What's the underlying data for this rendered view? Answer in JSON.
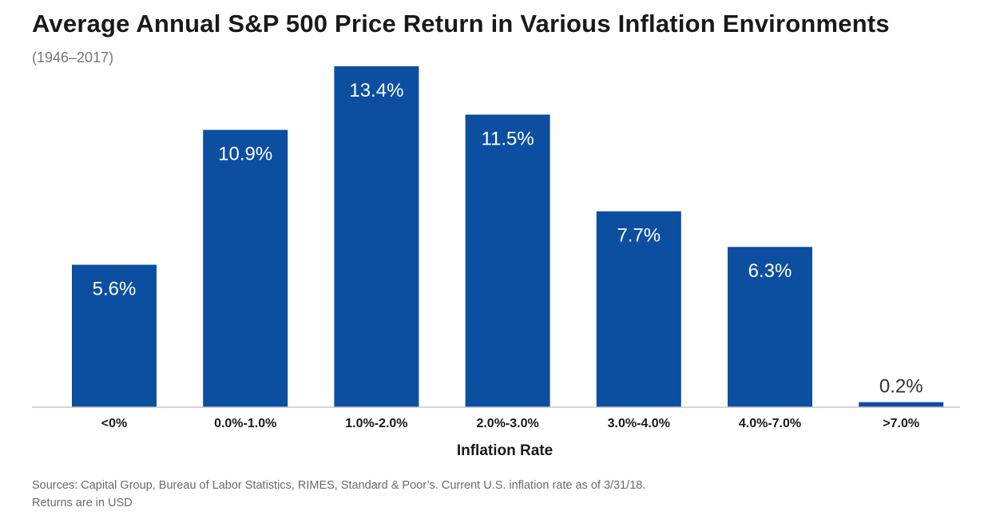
{
  "chart_data": {
    "type": "bar",
    "title": "Average Annual S&P 500 Price Return in Various Inflation Environments",
    "subtitle": "(1946–2017)",
    "categories": [
      "<0%",
      "0.0%-1.0%",
      "1.0%-2.0%",
      "2.0%-3.0%",
      "3.0%-4.0%",
      "4.0%-7.0%",
      ">7.0%"
    ],
    "values": [
      5.6,
      10.9,
      13.4,
      11.5,
      7.7,
      6.3,
      0.2
    ],
    "data_labels": [
      "5.6%",
      "10.9%",
      "13.4%",
      "11.5%",
      "7.7%",
      "6.3%",
      "0.2%"
    ],
    "xlabel": "Inflation Rate",
    "ylabel": "",
    "ylim": [
      0,
      13.4
    ],
    "grid": false,
    "legend": "none"
  },
  "colors": {
    "bar": "#0c4fa1",
    "label_inside": "#ffffff",
    "label_outside": "#333333"
  },
  "footer": {
    "sources_line1": "Sources: Capital Group, Bureau of Labor Statistics, RIMES, Standard & Poor’s. Current U.S. inflation rate as of 3/31/18.",
    "sources_line2": "Returns are in USD"
  }
}
